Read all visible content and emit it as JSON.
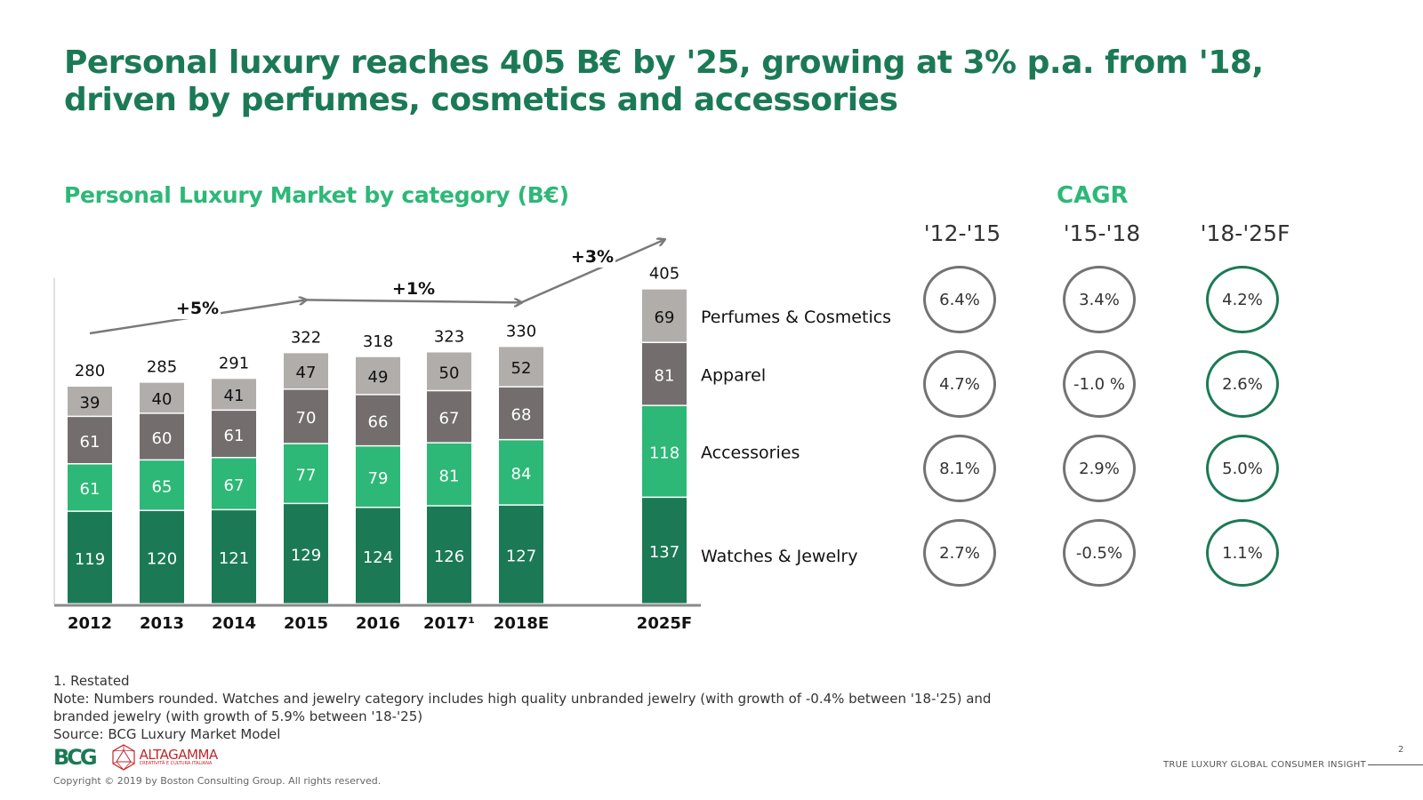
{
  "header": {
    "title": "Personal luxury reaches 405 B€ by '25, growing at 3% p.a. from '18, driven by perfumes, cosmetics and accessories"
  },
  "chart_data": {
    "type": "bar",
    "stacked": true,
    "title": "Personal Luxury Market by category (B€)",
    "xlabel": "",
    "ylabel": "",
    "categories": [
      "2012",
      "2013",
      "2014",
      "2015",
      "2016",
      "2017¹",
      "2018E",
      "2025F"
    ],
    "series": [
      {
        "name": "Watches & Jewelry",
        "color": "#1b7a55",
        "label_color": "#ffffff",
        "values": [
          119,
          120,
          121,
          129,
          124,
          126,
          127,
          137
        ]
      },
      {
        "name": "Accessories",
        "color": "#2db877",
        "label_color": "#ffffff",
        "values": [
          61,
          65,
          67,
          77,
          79,
          81,
          84,
          118
        ]
      },
      {
        "name": "Apparel",
        "color": "#736e6d",
        "label_color": "#ffffff",
        "values": [
          61,
          60,
          61,
          70,
          66,
          67,
          68,
          81
        ]
      },
      {
        "name": "Perfumes & Cosmetics",
        "color": "#b0adab",
        "label_color": "#111111",
        "values": [
          39,
          40,
          41,
          47,
          49,
          50,
          52,
          69
        ]
      }
    ],
    "totals": [
      280,
      285,
      291,
      322,
      318,
      323,
      330,
      405
    ],
    "growth_annotations": [
      {
        "label": "+5%",
        "from": "2012",
        "to": "2015"
      },
      {
        "label": "+1%",
        "from": "2015",
        "to": "2018E"
      },
      {
        "label": "+3%",
        "from": "2018E",
        "to": "2025F"
      }
    ],
    "ylim": [
      0,
      420
    ],
    "grid": false,
    "legend": "right"
  },
  "cagr": {
    "title": "CAGR",
    "columns": [
      {
        "period": "'12-'15",
        "values": [
          "6.4%",
          "4.7%",
          "8.1%",
          "2.7%"
        ],
        "style": "gray"
      },
      {
        "period": "'15-'18",
        "values": [
          "3.4%",
          "-1.0 %",
          "2.9%",
          "-0.5%"
        ],
        "style": "gray"
      },
      {
        "period": "'18-'25F",
        "values": [
          "4.2%",
          "2.6%",
          "5.0%",
          "1.1%"
        ],
        "style": "green"
      }
    ]
  },
  "notes": {
    "footnote": "1. Restated",
    "note_line1": "Note: Numbers rounded.  Watches and jewelry category includes high quality unbranded jewelry (with growth of -0.4% between '18-'25) and",
    "note_line2": "branded jewelry (with growth of 5.9% between '18-'25)",
    "source": "Source: BCG Luxury Market Model"
  },
  "footer": {
    "bcg_logo": "BCG",
    "altagamma_name": "ALTAGAMMA",
    "altagamma_sub": "CREATIVITÀ E CULTURA ITALIANA",
    "copyright": "Copyright © 2019 by Boston Consulting Group. All rights reserved.",
    "report_name": "TRUE LUXURY GLOBAL CONSUMER INSIGHT",
    "page_number": "2"
  }
}
